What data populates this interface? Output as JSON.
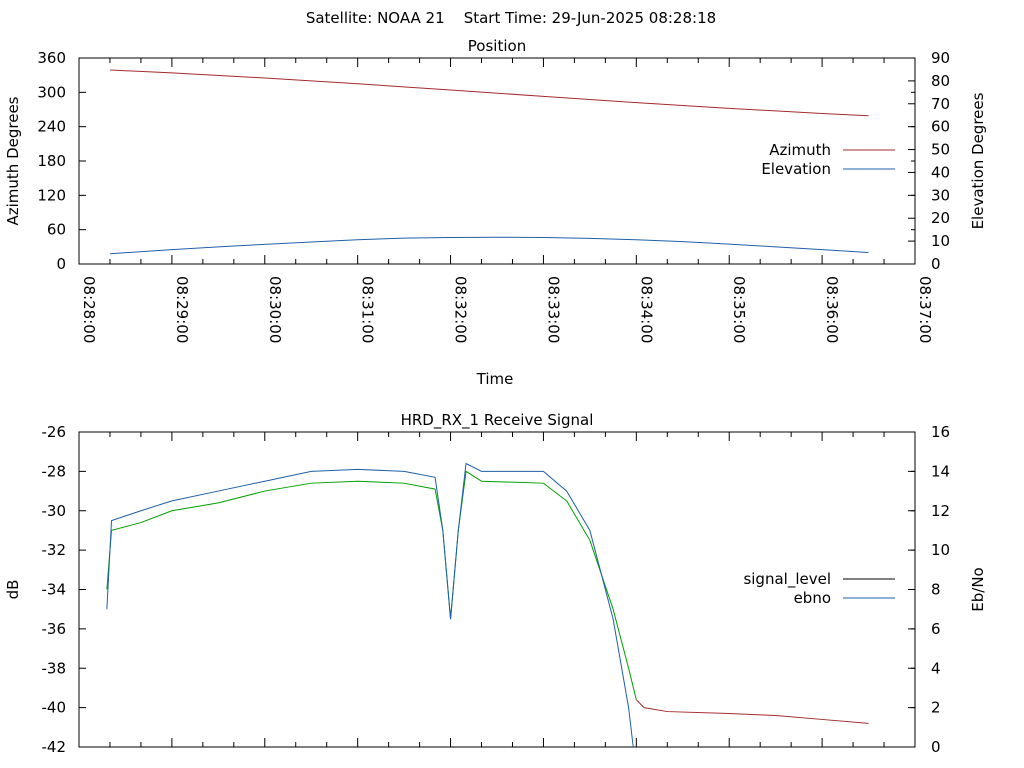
{
  "header": {
    "title": "Satellite: NOAA 21    Start Time: 29-Jun-2025 08:28:18"
  },
  "chart_data": [
    {
      "type": "line",
      "title": "Position",
      "xlabel": "Time",
      "ylabel": "Azimuth Degrees",
      "y2label": "Elevation Degrees",
      "x_ticks": [
        "08:28:00",
        "08:29:00",
        "08:30:00",
        "08:31:00",
        "08:32:00",
        "08:33:00",
        "08:34:00",
        "08:35:00",
        "08:36:00",
        "08:37:00"
      ],
      "xlim": [
        "08:28:00",
        "08:37:00"
      ],
      "ylim": [
        0,
        360
      ],
      "y_ticks": [
        "0",
        "60",
        "120",
        "180",
        "240",
        "300",
        "360"
      ],
      "y2lim": [
        0,
        90
      ],
      "y2_ticks": [
        "0",
        "10",
        "20",
        "30",
        "40",
        "50",
        "60",
        "70",
        "80",
        "90"
      ],
      "legend_position": "right",
      "series": [
        {
          "name": "Azimuth",
          "axis": "left",
          "color": "#a52a2a",
          "x": [
            "08:28:20",
            "08:29:00",
            "08:30:00",
            "08:31:00",
            "08:32:00",
            "08:33:00",
            "08:34:00",
            "08:35:00",
            "08:36:00",
            "08:36:30"
          ],
          "values": [
            339,
            334,
            325,
            315,
            304,
            293,
            282,
            272,
            263,
            259
          ]
        },
        {
          "name": "Elevation",
          "axis": "right",
          "color": "#1f5fa8",
          "x": [
            "08:28:20",
            "08:29:00",
            "08:29:30",
            "08:30:00",
            "08:30:30",
            "08:31:00",
            "08:31:30",
            "08:32:00",
            "08:32:30",
            "08:33:00",
            "08:33:30",
            "08:34:00",
            "08:34:30",
            "08:35:00",
            "08:35:30",
            "08:36:00",
            "08:36:30"
          ],
          "values": [
            4.5,
            6.3,
            7.5,
            8.6,
            9.6,
            10.6,
            11.3,
            11.6,
            11.7,
            11.6,
            11.2,
            10.6,
            9.8,
            8.7,
            7.5,
            6.3,
            5.0
          ]
        }
      ]
    },
    {
      "type": "line",
      "title": "HRD_RX_1 Receive Signal",
      "ylabel": "dB",
      "y2label": "Eb/No",
      "xlim": [
        "08:28:00",
        "08:37:00"
      ],
      "ylim": [
        -42,
        -26
      ],
      "y_ticks": [
        "-26",
        "-28",
        "-30",
        "-32",
        "-34",
        "-36",
        "-38",
        "-40",
        "-42"
      ],
      "y2lim": [
        0,
        16
      ],
      "y2_ticks": [
        "0",
        "2",
        "4",
        "6",
        "8",
        "10",
        "12",
        "14",
        "16"
      ],
      "legend_position": "right",
      "legend": [
        {
          "name": "signal_level",
          "color": "#000000"
        },
        {
          "name": "ebno",
          "color": "#1f5fa8"
        }
      ],
      "series": [
        {
          "name": "signal_level",
          "axis": "left",
          "color": "#00a000",
          "color_below_threshold": "#a52a2a",
          "x": [
            "08:28:18",
            "08:28:21",
            "08:28:40",
            "08:29:00",
            "08:29:30",
            "08:30:00",
            "08:30:30",
            "08:31:00",
            "08:31:30",
            "08:31:50",
            "08:31:55",
            "08:32:00",
            "08:32:05",
            "08:32:10",
            "08:32:20",
            "08:33:00",
            "08:33:15",
            "08:33:30",
            "08:33:45",
            "08:33:55",
            "08:34:00",
            "08:34:05",
            "08:34:20",
            "08:35:00",
            "08:35:30",
            "08:36:00",
            "08:36:30"
          ],
          "values": [
            -34.0,
            -31.0,
            -30.6,
            -30.0,
            -29.6,
            -29.0,
            -28.6,
            -28.5,
            -28.6,
            -28.9,
            -31.0,
            -35.5,
            -31.0,
            -28.0,
            -28.5,
            -28.6,
            -29.5,
            -31.5,
            -35.0,
            -38.0,
            -39.6,
            -40.0,
            -40.2,
            -40.3,
            -40.4,
            -40.6,
            -40.8
          ]
        },
        {
          "name": "ebno",
          "axis": "right",
          "color": "#1f5fa8",
          "x": [
            "08:28:18",
            "08:28:21",
            "08:28:40",
            "08:29:00",
            "08:29:30",
            "08:30:00",
            "08:30:30",
            "08:31:00",
            "08:31:30",
            "08:31:50",
            "08:31:55",
            "08:32:00",
            "08:32:05",
            "08:32:10",
            "08:32:20",
            "08:33:00",
            "08:33:15",
            "08:33:30",
            "08:33:45",
            "08:33:55",
            "08:33:58"
          ],
          "values": [
            7.0,
            11.5,
            12.0,
            12.5,
            13.0,
            13.5,
            14.0,
            14.1,
            14.0,
            13.7,
            11.0,
            6.5,
            11.0,
            14.4,
            14.0,
            14.0,
            13.0,
            11.0,
            6.5,
            2.0,
            0.0
          ]
        }
      ]
    }
  ]
}
